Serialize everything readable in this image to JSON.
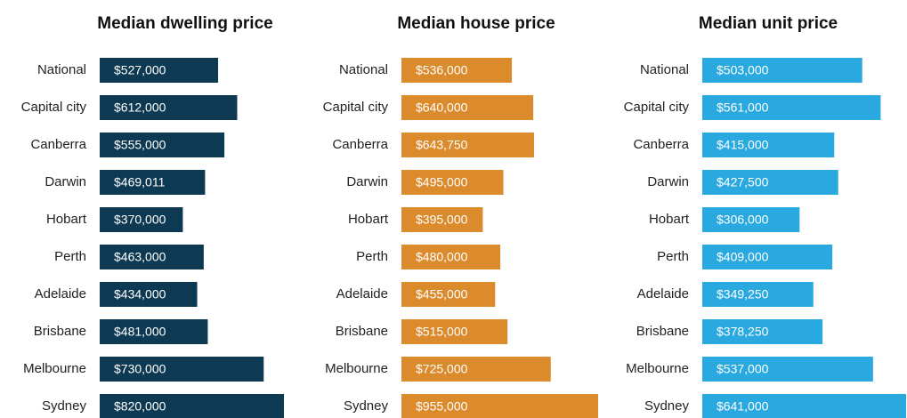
{
  "chart_data": [
    {
      "type": "bar",
      "orientation": "horizontal",
      "title": "Median dwelling price",
      "color": "#0d3a52",
      "categories": [
        "National",
        "Capital city",
        "Canberra",
        "Darwin",
        "Hobart",
        "Perth",
        "Adelaide",
        "Brisbane",
        "Melbourne",
        "Sydney"
      ],
      "values": [
        527000,
        612000,
        555000,
        469011,
        370000,
        463000,
        434000,
        481000,
        730000,
        820000
      ],
      "value_labels": [
        "$527,000",
        "$612,000",
        "$555,000",
        "$469,011",
        "$370,000",
        "$463,000",
        "$434,000",
        "$481,000",
        "$730,000",
        "$820,000"
      ],
      "xlim": [
        0,
        820000
      ]
    },
    {
      "type": "bar",
      "orientation": "horizontal",
      "title": "Median house price",
      "color": "#db8b2c",
      "categories": [
        "National",
        "Capital city",
        "Canberra",
        "Darwin",
        "Hobart",
        "Perth",
        "Adelaide",
        "Brisbane",
        "Melbourne",
        "Sydney"
      ],
      "values": [
        536000,
        640000,
        643750,
        495000,
        395000,
        480000,
        455000,
        515000,
        725000,
        955000
      ],
      "value_labels": [
        "$536,000",
        "$640,000",
        "$643,750",
        "$495,000",
        "$395,000",
        "$480,000",
        "$455,000",
        "$515,000",
        "$725,000",
        "$955,000"
      ],
      "xlim": [
        0,
        955000
      ]
    },
    {
      "type": "bar",
      "orientation": "horizontal",
      "title": "Median unit price",
      "color": "#2aa9e1",
      "categories": [
        "National",
        "Capital city",
        "Canberra",
        "Darwin",
        "Hobart",
        "Perth",
        "Adelaide",
        "Brisbane",
        "Melbourne",
        "Sydney"
      ],
      "values": [
        503000,
        561000,
        415000,
        427500,
        306000,
        409000,
        349250,
        378250,
        537000,
        641000
      ],
      "value_labels": [
        "$503,000",
        "$561,000",
        "$415,000",
        "$427,500",
        "$306,000",
        "$409,000",
        "$349,250",
        "$378,250",
        "$537,000",
        "$641,000"
      ],
      "xlim": [
        0,
        641000
      ]
    }
  ]
}
